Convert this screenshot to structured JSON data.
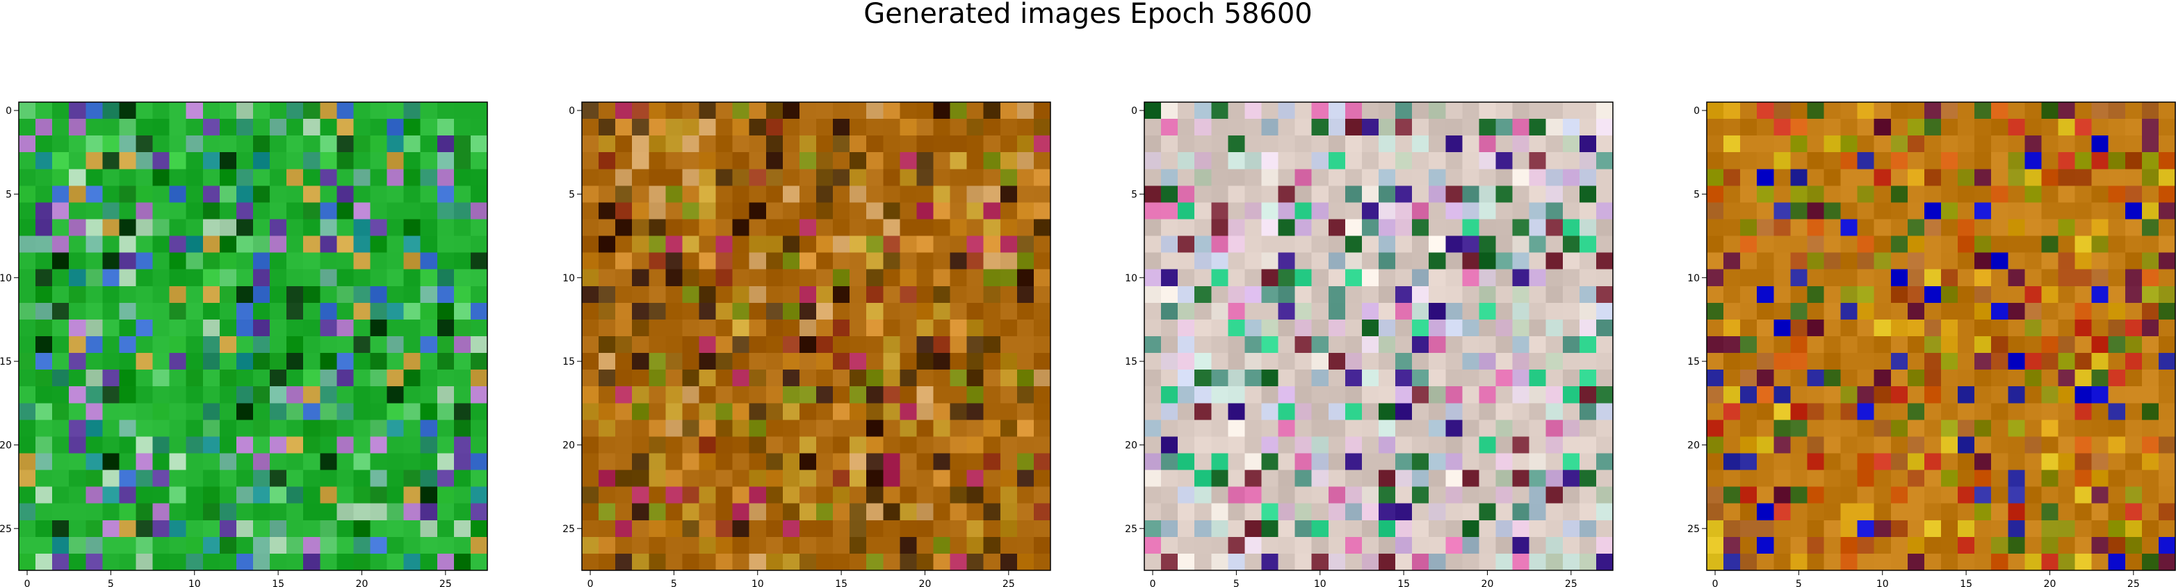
{
  "figure": {
    "title": "Generated images Epoch 58600"
  },
  "chart_data": [
    {
      "type": "heatmap",
      "title": "",
      "grid_size": [
        28,
        28
      ],
      "xlim": [
        -0.5,
        27.5
      ],
      "ylim": [
        27.5,
        -0.5
      ],
      "xticks": [
        0,
        5,
        10,
        15,
        20,
        25
      ],
      "yticks": [
        0,
        5,
        10,
        15,
        20,
        25
      ],
      "xtick_labels": [
        "0",
        "5",
        "10",
        "15",
        "20",
        "25"
      ],
      "ytick_labels": [
        "0",
        "5",
        "10",
        "15",
        "20",
        "25"
      ],
      "grid": false,
      "palette": [
        "#1fae2e",
        "#129a1a",
        "#33c43c",
        "#0c7d12",
        "#58c86a",
        "#6fb79d",
        "#2a8f6a",
        "#3b6fd0",
        "#b07ac8",
        "#caa040",
        "#0a3d10",
        "#a9d4b0",
        "#1a8f8f",
        "#5a3a9a"
      ],
      "dominant_color": "#1fae2e"
    },
    {
      "type": "heatmap",
      "title": "",
      "grid_size": [
        28,
        28
      ],
      "xlim": [
        -0.5,
        27.5
      ],
      "ylim": [
        27.5,
        -0.5
      ],
      "xticks": [
        0,
        5,
        10,
        15,
        20,
        25
      ],
      "yticks": [
        0,
        5,
        10,
        15,
        20,
        25
      ],
      "xtick_labels": [
        "0",
        "5",
        "10",
        "15",
        "20",
        "25"
      ],
      "ytick_labels": [
        "0",
        "5",
        "10",
        "15",
        "20",
        "25"
      ],
      "grid": false,
      "palette": [
        "#a8640a",
        "#c07a12",
        "#8a5a06",
        "#b88a1a",
        "#6e4a08",
        "#d08a2a",
        "#9a3a1a",
        "#5a3a10",
        "#b02a5a",
        "#7a8a10",
        "#c8a030",
        "#3a1a0a",
        "#d0a060"
      ],
      "dominant_color": "#a8640a"
    },
    {
      "type": "heatmap",
      "title": "",
      "grid_size": [
        28,
        28
      ],
      "xlim": [
        -0.5,
        27.5
      ],
      "ylim": [
        27.5,
        -0.5
      ],
      "xticks": [
        0,
        5,
        10,
        15,
        20,
        25
      ],
      "yticks": [
        0,
        5,
        10,
        15,
        20,
        25
      ],
      "xtick_labels": [
        "0",
        "5",
        "10",
        "15",
        "20",
        "25"
      ],
      "ytick_labels": [
        "0",
        "5",
        "10",
        "15",
        "20",
        "25"
      ],
      "grid": false,
      "palette": [
        "#d8c8c0",
        "#e6d6e6",
        "#b8c8b0",
        "#c8e0d8",
        "#e0c0d8",
        "#f0e8e0",
        "#a0b8c8",
        "#d0b0e0",
        "#5a9a8a",
        "#2ad08a",
        "#e070b0",
        "#c8d0e8",
        "#7a2a3a",
        "#1a6a2a",
        "#3a1a8a"
      ],
      "dominant_color": "#d8c8c0"
    },
    {
      "type": "heatmap",
      "title": "",
      "grid_size": [
        28,
        28
      ],
      "xlim": [
        -0.5,
        27.5
      ],
      "ylim": [
        27.5,
        -0.5
      ],
      "xticks": [
        0,
        5,
        10,
        15,
        20,
        25
      ],
      "yticks": [
        0,
        5,
        10,
        15,
        20,
        25
      ],
      "xtick_labels": [
        "0",
        "5",
        "10",
        "15",
        "20",
        "25"
      ],
      "ytick_labels": [
        "0",
        "5",
        "10",
        "15",
        "20",
        "25"
      ],
      "grid": false,
      "palette": [
        "#c07a12",
        "#d8a010",
        "#a84a10",
        "#8a8a0a",
        "#c8301a",
        "#0a0ad0",
        "#6a1a3a",
        "#e0c020",
        "#b06a2a",
        "#3a6a1a",
        "#d05a0a",
        "#2a2aa0",
        "#9aa010"
      ],
      "dominant_color": "#c07a12"
    }
  ]
}
